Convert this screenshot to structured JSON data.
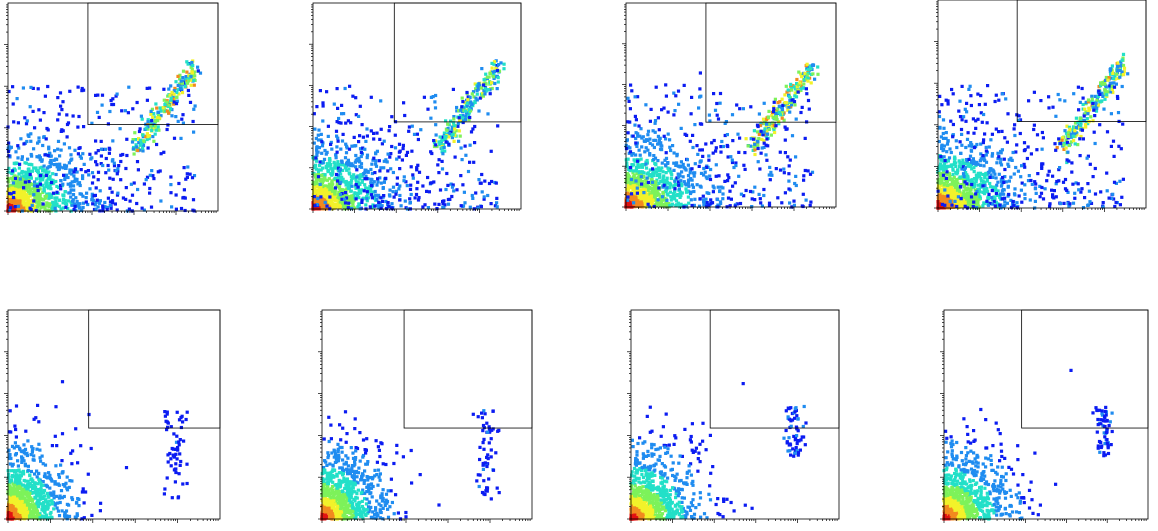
{
  "figure": {
    "rows": 2,
    "cols": 4
  },
  "chart_data": [
    {
      "type": "scatter",
      "subtype": "density",
      "xscale": "log",
      "yscale": "log",
      "xlim": [
        1,
        100000
      ],
      "ylim": [
        1,
        100000
      ],
      "density_colors": [
        "#0b1cf2",
        "#1f8cf0",
        "#22e0c8",
        "#7df25a",
        "#f2f22a",
        "#f28a1f",
        "#e21212"
      ],
      "clusters": [
        {
          "kind": "low",
          "x": [
            1,
            1000
          ],
          "y": [
            1,
            300
          ],
          "level": 1.0
        },
        {
          "kind": "diagonal",
          "x": [
            1000,
            30000
          ],
          "y": [
            30,
            3000
          ],
          "level": 0.75
        },
        {
          "kind": "spread",
          "x": [
            1,
            30000
          ],
          "y": [
            1,
            1000
          ],
          "level": 0.35
        }
      ],
      "gate": {
        "quadrant": "upper-right",
        "x_split": 80,
        "y_split": 120
      }
    },
    {
      "type": "scatter",
      "subtype": "density",
      "xscale": "log",
      "yscale": "log",
      "xlim": [
        1,
        100000
      ],
      "ylim": [
        1,
        100000
      ],
      "density_colors": [
        "#0b1cf2",
        "#1f8cf0",
        "#22e0c8",
        "#7df25a",
        "#f2f22a",
        "#f28a1f",
        "#e21212"
      ],
      "clusters": [
        {
          "kind": "low",
          "x": [
            1,
            1000
          ],
          "y": [
            1,
            300
          ],
          "level": 1.0
        },
        {
          "kind": "diagonal",
          "x": [
            1000,
            30000
          ],
          "y": [
            30,
            3000
          ],
          "level": 0.7
        },
        {
          "kind": "spread",
          "x": [
            1,
            30000
          ],
          "y": [
            1,
            1000
          ],
          "level": 0.4
        }
      ],
      "gate": {
        "quadrant": "upper-right",
        "x_split": 90,
        "y_split": 130
      }
    },
    {
      "type": "scatter",
      "subtype": "density",
      "xscale": "log",
      "yscale": "log",
      "xlim": [
        1,
        100000
      ],
      "ylim": [
        1,
        100000
      ],
      "density_colors": [
        "#0b1cf2",
        "#1f8cf0",
        "#22e0c8",
        "#7df25a",
        "#f2f22a",
        "#f28a1f",
        "#e21212"
      ],
      "clusters": [
        {
          "kind": "low",
          "x": [
            1,
            1000
          ],
          "y": [
            1,
            300
          ],
          "level": 1.0
        },
        {
          "kind": "diagonal",
          "x": [
            1000,
            30000
          ],
          "y": [
            30,
            3000
          ],
          "level": 0.8
        },
        {
          "kind": "spread",
          "x": [
            1,
            30000
          ],
          "y": [
            1,
            1000
          ],
          "level": 0.45
        }
      ],
      "gate": {
        "quadrant": "upper-right",
        "x_split": 80,
        "y_split": 120
      }
    },
    {
      "type": "scatter",
      "subtype": "density",
      "xscale": "log",
      "yscale": "log",
      "xlim": [
        1,
        100000
      ],
      "ylim": [
        1,
        100000
      ],
      "density_colors": [
        "#0b1cf2",
        "#1f8cf0",
        "#22e0c8",
        "#7df25a",
        "#f2f22a",
        "#f28a1f",
        "#e21212"
      ],
      "clusters": [
        {
          "kind": "low",
          "x": [
            1,
            1000
          ],
          "y": [
            1,
            300
          ],
          "level": 1.0
        },
        {
          "kind": "diagonal",
          "x": [
            1000,
            30000
          ],
          "y": [
            30,
            3000
          ],
          "level": 0.75
        },
        {
          "kind": "spread",
          "x": [
            1,
            30000
          ],
          "y": [
            1,
            1000
          ],
          "level": 0.4
        }
      ],
      "gate": {
        "quadrant": "upper-right",
        "x_split": 80,
        "y_split": 120
      }
    },
    {
      "type": "scatter",
      "subtype": "density",
      "xscale": "log",
      "yscale": "log",
      "xlim": [
        1,
        100000
      ],
      "ylim": [
        1,
        100000
      ],
      "density_colors": [
        "#0b1cf2",
        "#1f8cf0",
        "#22e0c8",
        "#7df25a",
        "#f2f22a",
        "#f28a1f",
        "#e21212"
      ],
      "clusters": [
        {
          "kind": "blob",
          "x": [
            1,
            150
          ],
          "y": [
            1,
            300
          ],
          "level": 1.0
        },
        {
          "kind": "column",
          "x": [
            5000,
            15000
          ],
          "y": [
            3,
            400
          ],
          "level": 0.15
        }
      ],
      "gate": {
        "quadrant": "upper-right",
        "x_split": 80,
        "y_split": 150
      }
    },
    {
      "type": "scatter",
      "subtype": "density",
      "xscale": "log",
      "yscale": "log",
      "xlim": [
        1,
        100000
      ],
      "ylim": [
        1,
        100000
      ],
      "density_colors": [
        "#0b1cf2",
        "#1f8cf0",
        "#22e0c8",
        "#7df25a",
        "#f2f22a",
        "#f28a1f",
        "#e21212"
      ],
      "clusters": [
        {
          "kind": "blob",
          "x": [
            1,
            150
          ],
          "y": [
            1,
            250
          ],
          "level": 1.0
        },
        {
          "kind": "column",
          "x": [
            5000,
            15000
          ],
          "y": [
            3,
            400
          ],
          "level": 0.15
        }
      ],
      "gate": {
        "quadrant": "upper-right",
        "x_split": 90,
        "y_split": 150
      }
    },
    {
      "type": "scatter",
      "subtype": "density",
      "xscale": "log",
      "yscale": "log",
      "xlim": [
        1,
        100000
      ],
      "ylim": [
        1,
        100000
      ],
      "density_colors": [
        "#0b1cf2",
        "#1f8cf0",
        "#22e0c8",
        "#7df25a",
        "#f2f22a",
        "#f28a1f",
        "#e21212"
      ],
      "clusters": [
        {
          "kind": "blob",
          "x": [
            1,
            300
          ],
          "y": [
            1,
            250
          ],
          "level": 1.0
        },
        {
          "kind": "column",
          "x": [
            5000,
            15000
          ],
          "y": [
            30,
            500
          ],
          "level": 0.2
        }
      ],
      "gate": {
        "quadrant": "upper-right",
        "x_split": 80,
        "y_split": 150
      }
    },
    {
      "type": "scatter",
      "subtype": "density",
      "xscale": "log",
      "yscale": "log",
      "xlim": [
        1,
        100000
      ],
      "ylim": [
        1,
        100000
      ],
      "density_colors": [
        "#0b1cf2",
        "#1f8cf0",
        "#22e0c8",
        "#7df25a",
        "#f2f22a",
        "#f28a1f",
        "#e21212"
      ],
      "clusters": [
        {
          "kind": "blob",
          "x": [
            1,
            300
          ],
          "y": [
            1,
            250
          ],
          "level": 1.0
        },
        {
          "kind": "column",
          "x": [
            5000,
            15000
          ],
          "y": [
            30,
            500
          ],
          "level": 0.2
        }
      ],
      "gate": {
        "quadrant": "upper-right",
        "x_split": 80,
        "y_split": 150
      }
    }
  ]
}
